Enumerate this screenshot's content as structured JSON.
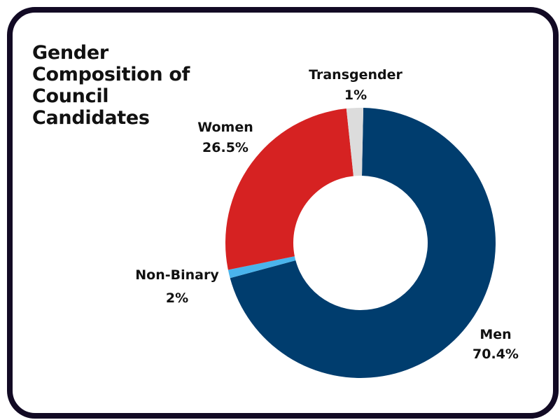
{
  "chart_data": {
    "type": "pie",
    "title": "Gender Composition of Council Candidates",
    "categories": [
      "Men",
      "Transgender",
      "Women",
      "Non-Binary"
    ],
    "values": [
      70.4,
      1,
      26.5,
      2
    ],
    "value_labels": [
      "70.4%",
      "1%",
      "26.5%",
      "2%"
    ],
    "colors": [
      "#003d6e",
      "#4ab4ec",
      "#d62222",
      "#dcdcdc"
    ],
    "donut": true,
    "legend": "none (direct labels)"
  }
}
